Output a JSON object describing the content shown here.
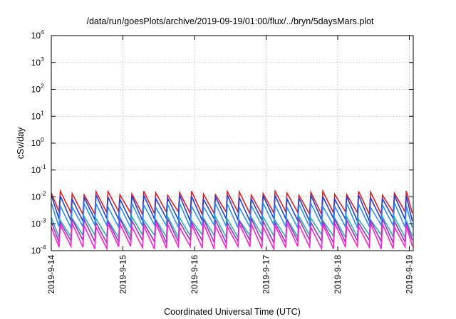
{
  "chart_data": {
    "type": "line",
    "title": "/data/run/goesPlots/archive/2019-09-19/01:00/flux/../bryn/5daysMars.plot",
    "xlabel": "Coordinated Universal Time (UTC)",
    "ylabel": "cSv/day",
    "y_scale": "log",
    "ylim": [
      0.0001,
      10000
    ],
    "y_ticks": [
      {
        "base": "10",
        "exp": "-4",
        "value": 0.0001
      },
      {
        "base": "10",
        "exp": "-3",
        "value": 0.001
      },
      {
        "base": "10",
        "exp": "-2",
        "value": 0.01
      },
      {
        "base": "10",
        "exp": "-1",
        "value": 0.1
      },
      {
        "base": "10",
        "exp": "0",
        "value": 1
      },
      {
        "base": "10",
        "exp": "1",
        "value": 10
      },
      {
        "base": "10",
        "exp": "2",
        "value": 100
      },
      {
        "base": "10",
        "exp": "3",
        "value": 1000
      },
      {
        "base": "10",
        "exp": "4",
        "value": 10000
      }
    ],
    "xlim": [
      "2019-09-14",
      "2019-09-19T01:00"
    ],
    "x_ticks": [
      "2019-9-14",
      "2019-9-15",
      "2019-9-16",
      "2019-9-17",
      "2019-9-18",
      "2019-9-19"
    ],
    "grid": true,
    "sawtooth_period_hours": 4,
    "series": [
      {
        "color": "#e31a1c",
        "peak": 0.014,
        "trough": 0.0025
      },
      {
        "color": "#1f3fd6",
        "peak": 0.01,
        "trough": 0.0014
      },
      {
        "color": "#2b8cff",
        "peak": 0.005,
        "trough": 0.0008
      },
      {
        "color": "#20b8a8",
        "peak": 0.0016,
        "trough": 0.00035
      },
      {
        "color": "#9b30c8",
        "peak": 0.0013,
        "trough": 0.00022
      },
      {
        "color": "#ff1fd2",
        "peak": 0.0009,
        "trough": 0.00013
      }
    ]
  }
}
